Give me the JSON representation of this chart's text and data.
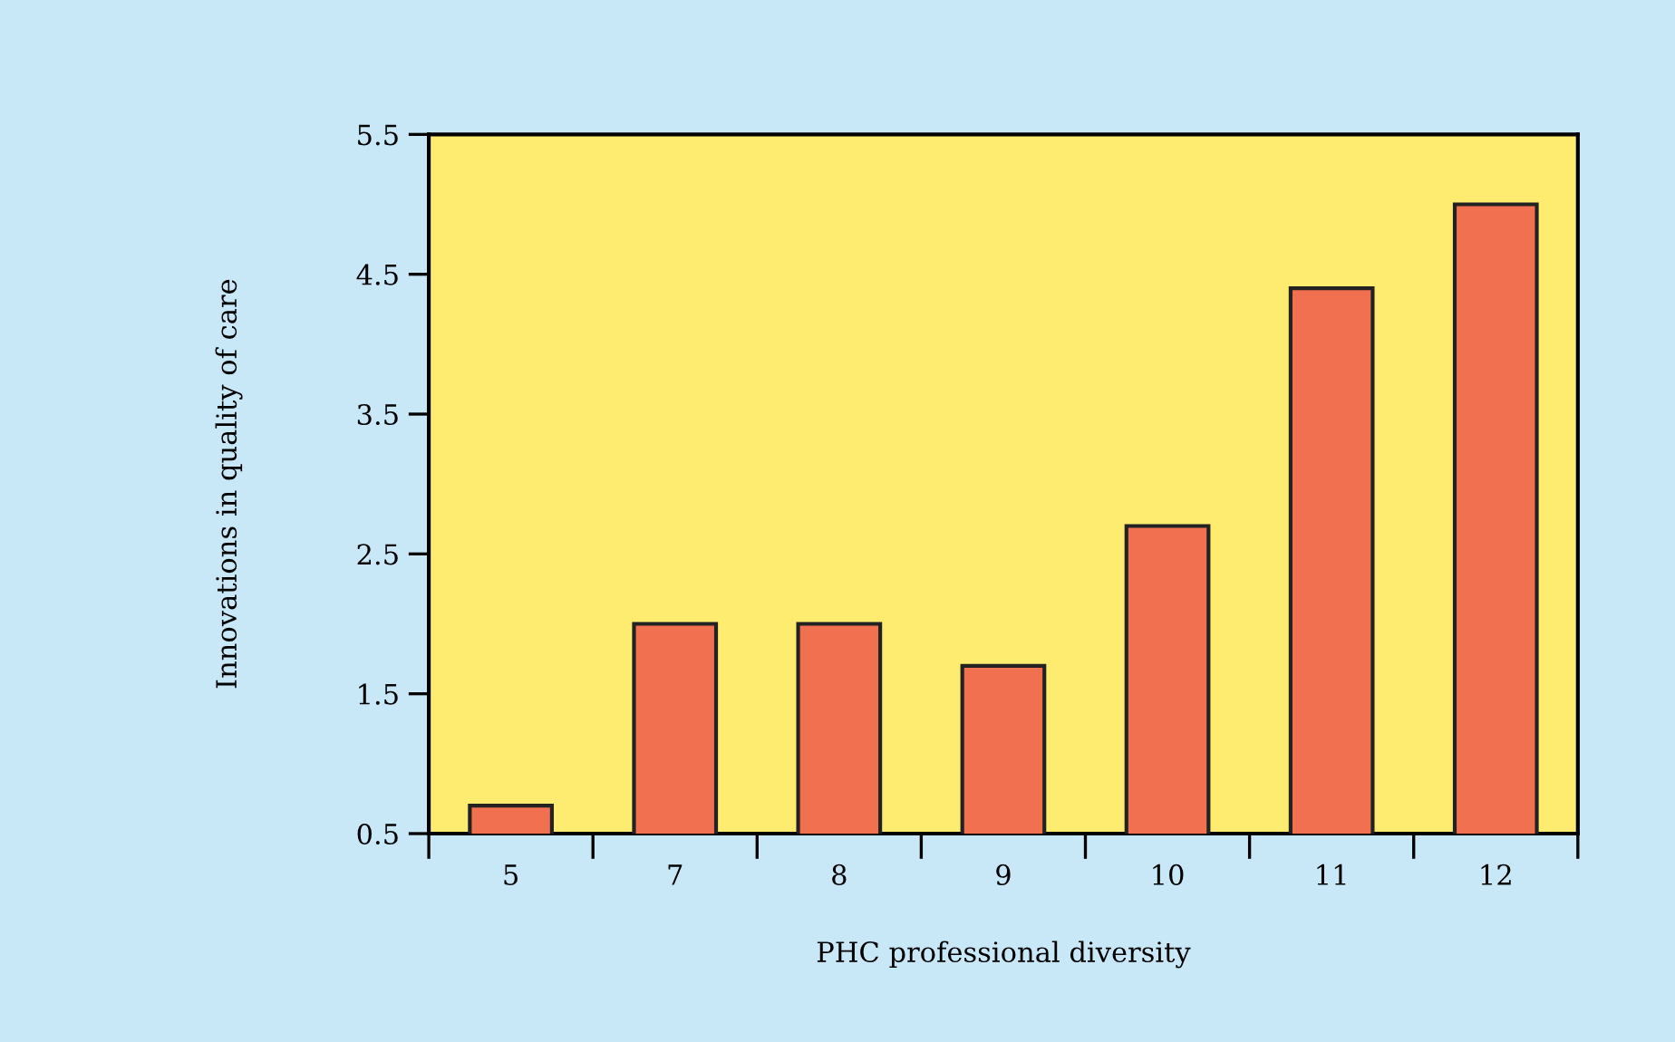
{
  "chart_data": {
    "type": "bar",
    "xlabel": "PHC professional diversity",
    "ylabel": "Innovations in quality of care",
    "categories": [
      "5",
      "7",
      "8",
      "9",
      "10",
      "11",
      "12"
    ],
    "values": [
      0.7,
      2.0,
      2.0,
      1.7,
      2.7,
      4.4,
      5.0
    ],
    "color": "#f07050",
    "ylim": [
      0.5,
      5.5
    ],
    "yticks": [
      0.5,
      1.5,
      2.5,
      3.5,
      4.5,
      5.5
    ],
    "grid": false,
    "legend": false
  }
}
